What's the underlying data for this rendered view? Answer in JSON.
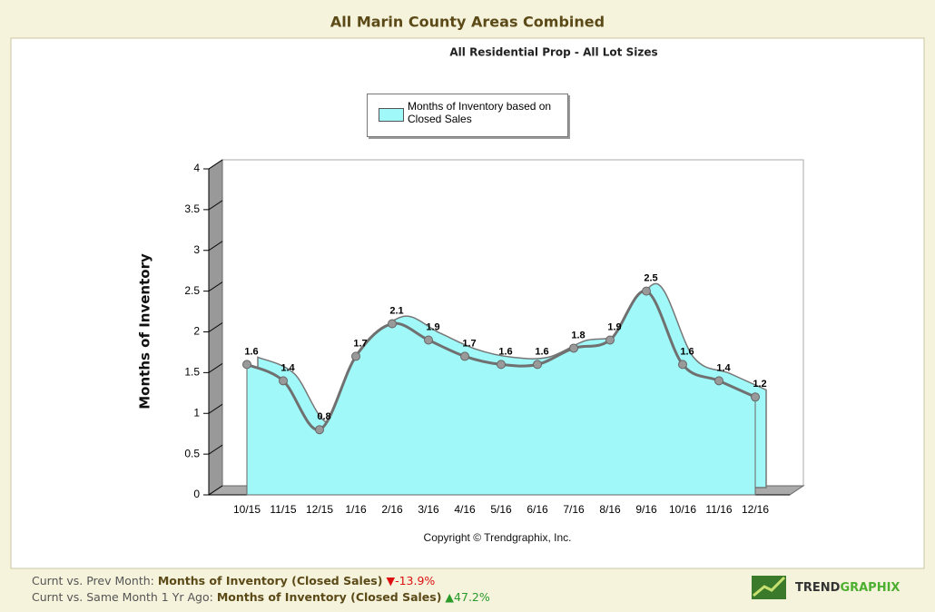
{
  "header": {
    "title": "All Marin County Areas Combined"
  },
  "chart_data": {
    "type": "area",
    "title": "All Residential Prop - All Lot Sizes",
    "y_label": "Months of Inventory",
    "categories": [
      "10/15",
      "11/15",
      "12/15",
      "1/16",
      "2/16",
      "3/16",
      "4/16",
      "5/16",
      "6/16",
      "7/16",
      "8/16",
      "9/16",
      "10/16",
      "11/16",
      "12/16"
    ],
    "series": [
      {
        "name": "Months of Inventory based on Closed Sales",
        "color": "#a0f8f8",
        "values": [
          1.6,
          1.4,
          0.8,
          1.7,
          2.1,
          1.9,
          1.7,
          1.6,
          1.6,
          1.8,
          1.9,
          2.5,
          1.6,
          1.4,
          1.2
        ]
      }
    ],
    "ylim": [
      0,
      4
    ],
    "yticks": [
      0,
      0.5,
      1,
      1.5,
      2,
      2.5,
      3,
      3.5,
      4
    ],
    "copyright": "Copyright © Trendgraphix, Inc."
  },
  "footer": {
    "rows": [
      {
        "label": "Curnt vs. Prev Month:",
        "metric": "Months of Inventory (Closed Sales)",
        "change": "-13.9%",
        "direction": "down"
      },
      {
        "label": "Curnt vs. Same Month 1 Yr Ago:",
        "metric": "Months of Inventory (Closed Sales)",
        "change": "47.2%",
        "direction": "up"
      }
    ]
  },
  "logo": {
    "part1": "TREND",
    "part2": "GRAPHIX"
  }
}
